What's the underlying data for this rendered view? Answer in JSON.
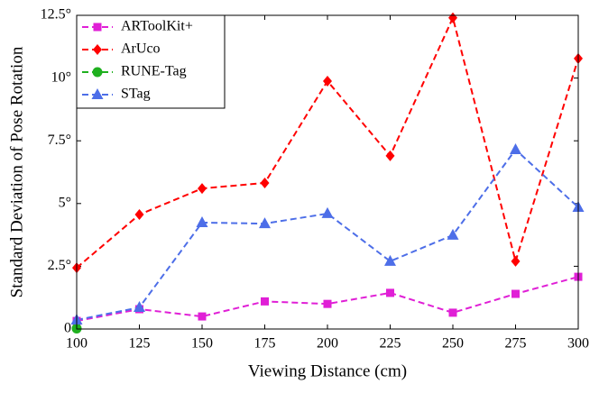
{
  "chart_data": {
    "type": "line",
    "xlabel": "Viewing Distance (cm)",
    "ylabel": "Standard Deviation of Pose Rotation",
    "x": [
      100,
      125,
      150,
      175,
      200,
      225,
      250,
      275,
      300
    ],
    "xlim": [
      100,
      300
    ],
    "xticks": [
      100,
      125,
      150,
      175,
      200,
      225,
      250,
      275,
      300
    ],
    "ylim": [
      0,
      12.5
    ],
    "yticks": [
      0,
      {
        "value": 2.5,
        "label": "2.5°"
      },
      {
        "value": 5,
        "label": "5°"
      },
      {
        "value": 7.5,
        "label": "7.5°"
      },
      {
        "value": 10,
        "label": "10°"
      },
      {
        "value": 12.5,
        "label": "12.5°"
      }
    ],
    "legend": "upper-left",
    "series": [
      {
        "name": "ARToolKit+",
        "color": "#e01fd6",
        "marker": "square",
        "values": [
          0.32,
          0.79,
          0.5,
          1.1,
          1.0,
          1.44,
          0.65,
          1.4,
          2.08
        ]
      },
      {
        "name": "ArUco",
        "color": "#ff0000",
        "marker": "diamond",
        "values": [
          2.44,
          4.56,
          5.6,
          5.82,
          9.88,
          6.9,
          12.4,
          2.7,
          10.78
        ]
      },
      {
        "name": "RUNE-Tag",
        "color": "#1fb01f",
        "marker": "circle",
        "values": [
          0.02,
          null,
          null,
          null,
          null,
          null,
          null,
          null,
          null
        ]
      },
      {
        "name": "STag",
        "color": "#4d6ee8",
        "marker": "triangle",
        "values": [
          0.36,
          0.86,
          4.24,
          4.2,
          4.6,
          2.7,
          3.74,
          7.15,
          4.85
        ]
      }
    ]
  }
}
